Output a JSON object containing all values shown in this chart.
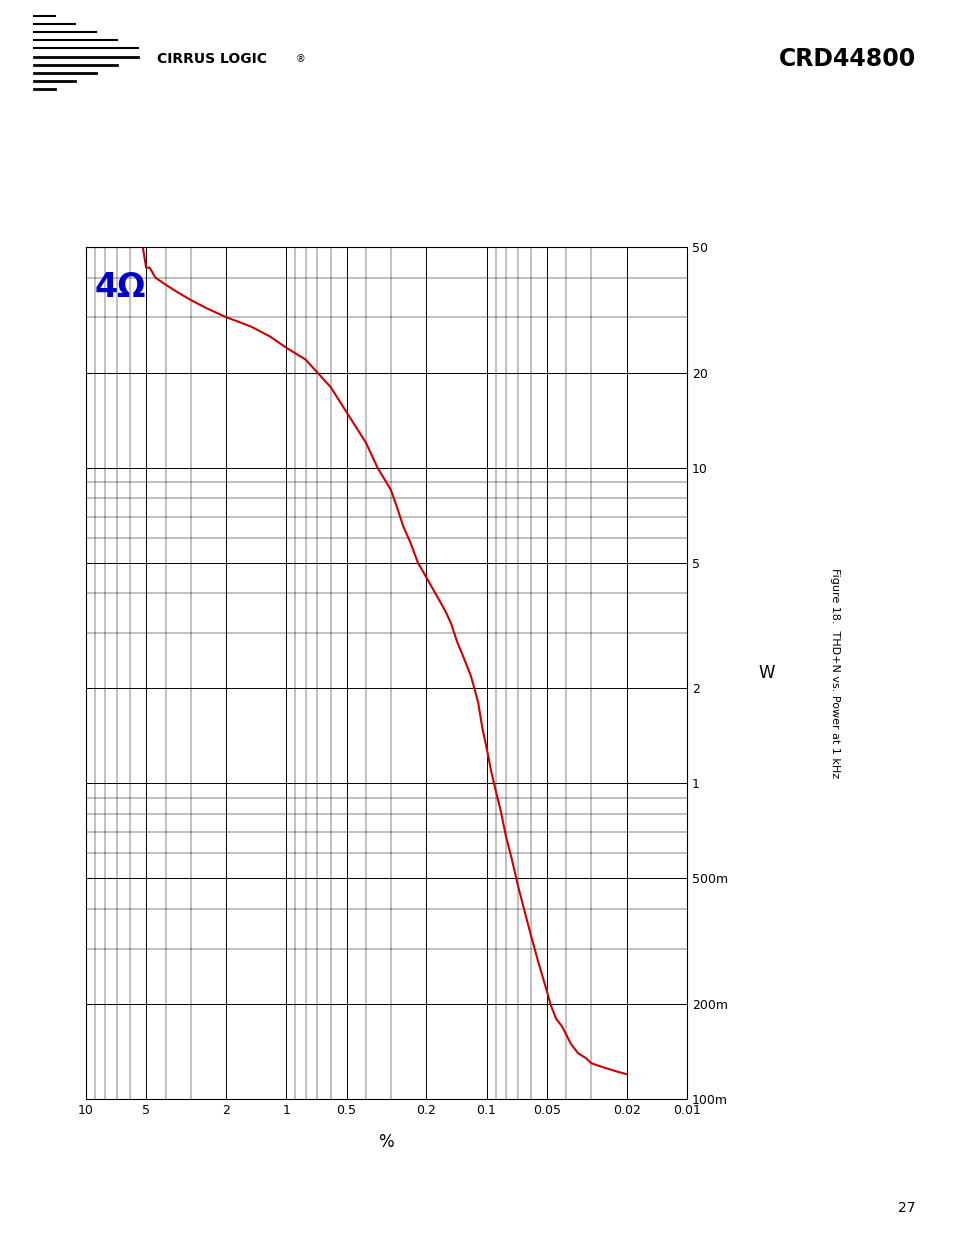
{
  "title": "Figure 18.  THD+N vs. Power at 1 kHz",
  "xlabel": "%",
  "ylabel": "W",
  "label_text": "4Ω",
  "line_color": "#cc0000",
  "label_color": "#0000cc",
  "xlim": [
    0.01,
    10
  ],
  "ylim": [
    0.1,
    50
  ],
  "x_ticks": [
    10,
    5,
    2,
    1,
    0.5,
    0.2,
    0.1,
    0.05,
    0.02,
    0.01
  ],
  "x_tick_labels": [
    "10",
    "5",
    "2",
    "1",
    "0.5",
    "0.2",
    "0.1",
    "0.05",
    "0.02",
    "0.01"
  ],
  "y_ticks": [
    0.1,
    0.2,
    0.5,
    1,
    2,
    5,
    10,
    20,
    50
  ],
  "y_tick_labels": [
    "100m",
    "200m",
    "500m",
    "1",
    "2",
    "5",
    "10",
    "20",
    "50"
  ],
  "curve_x": [
    10.0,
    9.0,
    8.0,
    7.0,
    6.0,
    5.5,
    5.2,
    5.0,
    4.8,
    4.5,
    4.0,
    3.5,
    3.0,
    2.5,
    2.0,
    1.5,
    1.2,
    1.0,
    0.8,
    0.6,
    0.5,
    0.4,
    0.35,
    0.3,
    0.28,
    0.26,
    0.24,
    0.22,
    0.2,
    0.18,
    0.16,
    0.15,
    0.14,
    0.13,
    0.12,
    0.115,
    0.11,
    0.105,
    0.1,
    0.095,
    0.09,
    0.085,
    0.08,
    0.075,
    0.07,
    0.065,
    0.06,
    0.055,
    0.05,
    0.048,
    0.045,
    0.042,
    0.04,
    0.038,
    0.035,
    0.032,
    0.03,
    0.028,
    0.025,
    0.022,
    0.02
  ],
  "curve_y": [
    50.0,
    50.0,
    50.0,
    50.0,
    50.0,
    50.0,
    50.0,
    43.0,
    43.0,
    40.0,
    38.0,
    36.0,
    34.0,
    32.0,
    30.0,
    28.0,
    26.0,
    24.0,
    22.0,
    18.0,
    15.0,
    12.0,
    10.0,
    8.5,
    7.5,
    6.5,
    5.8,
    5.0,
    4.5,
    4.0,
    3.5,
    3.2,
    2.8,
    2.5,
    2.2,
    2.0,
    1.8,
    1.5,
    1.3,
    1.1,
    0.95,
    0.82,
    0.68,
    0.58,
    0.48,
    0.4,
    0.33,
    0.27,
    0.22,
    0.2,
    0.18,
    0.17,
    0.16,
    0.15,
    0.14,
    0.135,
    0.13,
    0.128,
    0.125,
    0.122,
    0.12
  ],
  "background_color": "#ffffff",
  "grid_color": "#000000",
  "header_bar_color": "#808080",
  "page_number": "27"
}
